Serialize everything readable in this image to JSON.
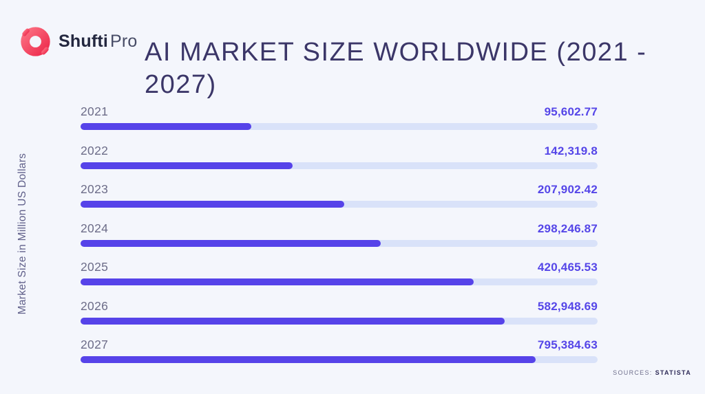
{
  "brand": {
    "logo_icon": "shufti-pro-ring-icon",
    "name_bold": "Shufti",
    "name_light": "Pro"
  },
  "header": {
    "title_line1": "AI MARKET SIZE WORLDWIDE (2021 -",
    "title_line2": "2027)"
  },
  "axis": {
    "y_label": "Market Size in Million US Dollars"
  },
  "footer": {
    "sources_label": "SOURCES:",
    "source_name": "STATISTA"
  },
  "colors": {
    "background": "#f4f6fc",
    "bar_fill": "#5643e9",
    "bar_track": "#d9e2f9",
    "value_text": "#5546e8",
    "year_text": "#6c6c88",
    "title_text": "#3b3668",
    "logo_red_light": "#fb6e80",
    "logo_red_dark": "#ee2d4f"
  },
  "chart_data": {
    "type": "bar",
    "orientation": "horizontal",
    "title": "AI MARKET SIZE WORLDWIDE (2021 - 2027)",
    "xlabel": "Market Size in Million US Dollars",
    "categories": [
      "2021",
      "2022",
      "2023",
      "2024",
      "2025",
      "2026",
      "2027"
    ],
    "values": [
      95602.77,
      142319.8,
      207902.42,
      298246.87,
      420465.53,
      582948.69,
      795384.63
    ],
    "value_labels": [
      "95,602.77",
      "142,319.8",
      "207,902.42",
      "298,246.87",
      "420,465.53",
      "582,948.69",
      "795,384.63"
    ],
    "bar_fill_percents": [
      33,
      41,
      51,
      58,
      76,
      82,
      88
    ],
    "legend": "none",
    "grid": "off",
    "source": "STATISTA"
  }
}
